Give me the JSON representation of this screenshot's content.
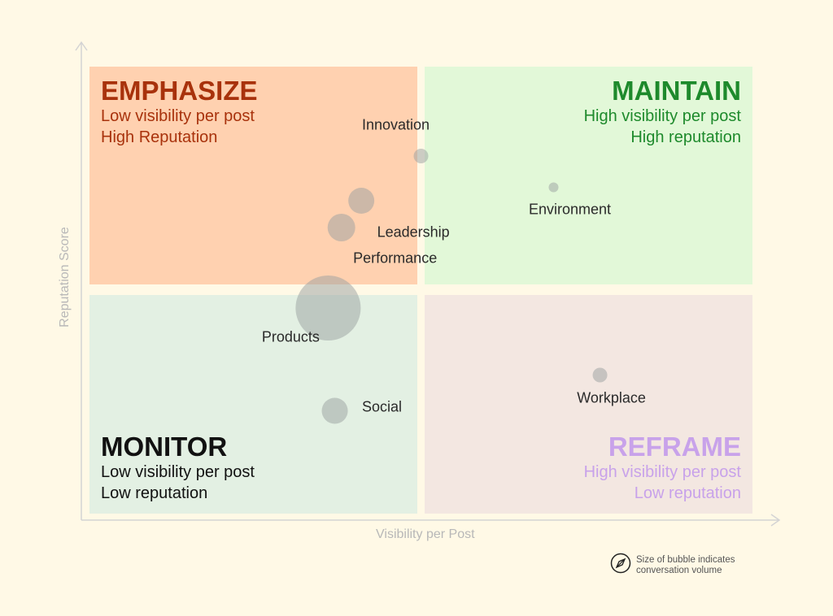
{
  "chart_data": {
    "type": "scatter",
    "subtype": "bubble-quadrant",
    "xlabel": "Visibility per Post",
    "ylabel": "Reputation Score",
    "xlim": [
      0,
      100
    ],
    "ylim": [
      0,
      100
    ],
    "grid": false,
    "quadrants": [
      {
        "id": "emphasize",
        "title": "EMPHASIZE",
        "lines": [
          "Low visibility per post",
          "High Reputation"
        ],
        "bg": "#ffd1b0",
        "color": "#a8320c"
      },
      {
        "id": "maintain",
        "title": "MAINTAIN",
        "lines": [
          "High visibility per post",
          "High reputation"
        ],
        "bg": "#e2f8d8",
        "color": "#1e8a2c"
      },
      {
        "id": "monitor",
        "title": "MONITOR",
        "lines": [
          "Low visibility per post",
          "Low reputation"
        ],
        "bg": "#e3f0e3",
        "color": "#111111"
      },
      {
        "id": "reframe",
        "title": "REFRAME",
        "lines": [
          "High visibility per post",
          "Low reputation"
        ],
        "bg": "#f3e7e1",
        "color": "#c8a2ea"
      }
    ],
    "points": [
      {
        "label": "Innovation",
        "x": 50,
        "y": 80,
        "size": 9
      },
      {
        "label": "Environment",
        "x": 70,
        "y": 73,
        "size": 6
      },
      {
        "label": "Leadership",
        "x": 41,
        "y": 70,
        "size": 16
      },
      {
        "label": "Performance",
        "x": 38,
        "y": 64,
        "size": 17
      },
      {
        "label": "Products",
        "x": 36,
        "y": 46,
        "size": 40
      },
      {
        "label": "Social",
        "x": 37,
        "y": 23,
        "size": 16
      },
      {
        "label": "Workplace",
        "x": 77,
        "y": 31,
        "size": 9
      }
    ],
    "bubble_color": "#9aa0a0",
    "legend": {
      "icon": "compass-icon",
      "text": "Size of bubble indicates conversation volume",
      "line1": "Size of bubble indicates",
      "line2": "conversation volume",
      "placement": "bottom-right"
    }
  }
}
